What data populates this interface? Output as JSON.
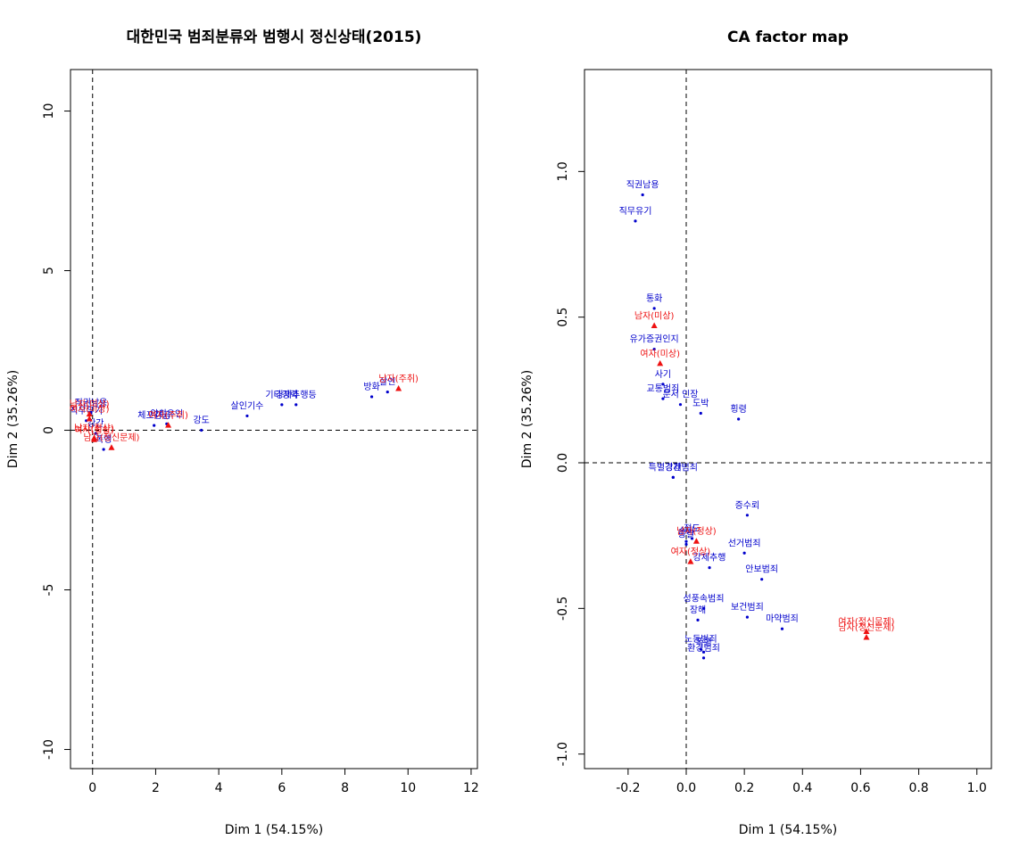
{
  "chart_data": [
    {
      "type": "scatter",
      "title": "대한민국 범죄분류와 범행시 정신상태(2015)",
      "xlabel": "Dim 1 (54.15%)",
      "ylabel": "Dim 2 (35.26%)",
      "xlim": [
        -0.7,
        12.2
      ],
      "ylim": [
        -10.6,
        11.3
      ],
      "xticks": [
        "0",
        "2",
        "4",
        "6",
        "8",
        "10",
        "12"
      ],
      "yticks": [
        "-10",
        "-5",
        "0",
        "5",
        "10"
      ],
      "reference_lines": {
        "x": 0,
        "y": 0
      },
      "row_points": [
        {
          "label": "방화",
          "x": 8.85,
          "y": 1.05
        },
        {
          "label": "살인",
          "x": 9.35,
          "y": 1.2
        },
        {
          "label": "기타강력",
          "x": 6.0,
          "y": 0.8
        },
        {
          "label": "강제추행등",
          "x": 6.45,
          "y": 0.8
        },
        {
          "label": "살인기수",
          "x": 4.9,
          "y": 0.45
        },
        {
          "label": "강도",
          "x": 3.45,
          "y": 0.0
        },
        {
          "label": "체포감금",
          "x": 1.95,
          "y": 0.15
        },
        {
          "label": "약취유인",
          "x": 2.35,
          "y": 0.2
        },
        {
          "label": "직권남용",
          "x": -0.05,
          "y": 0.55
        },
        {
          "label": "직무유기",
          "x": -0.2,
          "y": 0.3
        },
        {
          "label": "강간",
          "x": 0.1,
          "y": -0.1
        },
        {
          "label": "폭행",
          "x": 0.35,
          "y": -0.6
        }
      ],
      "column_points": [
        {
          "label": "남자(주취)",
          "x": 9.7,
          "y": 1.3
        },
        {
          "label": "여자(주취)",
          "x": 2.4,
          "y": 0.15
        },
        {
          "label": "남자(정신문제)",
          "x": 0.6,
          "y": -0.55
        },
        {
          "label": "남자(미상)",
          "x": -0.1,
          "y": 0.5
        },
        {
          "label": "여자(미상)",
          "x": -0.1,
          "y": 0.35
        },
        {
          "label": "남자(정상)",
          "x": 0.05,
          "y": -0.25
        },
        {
          "label": "여자(정상)",
          "x": 0.05,
          "y": -0.3
        }
      ]
    },
    {
      "type": "scatter",
      "title": "CA factor map",
      "xlabel": "Dim 1 (54.15%)",
      "ylabel": "Dim 2 (35.26%)",
      "xlim": [
        -0.35,
        1.05
      ],
      "ylim": [
        -1.05,
        1.35
      ],
      "xticks": [
        "-0.2",
        "0.0",
        "0.2",
        "0.4",
        "0.6",
        "0.8",
        "1.0"
      ],
      "yticks": [
        "-1.0",
        "-0.5",
        "0.0",
        "0.5",
        "1.0"
      ],
      "reference_lines": {
        "x": 0,
        "y": 0
      },
      "row_points": [
        {
          "label": "직권남용",
          "x": -0.15,
          "y": 0.92
        },
        {
          "label": "직무유기",
          "x": -0.175,
          "y": 0.83
        },
        {
          "label": "통화",
          "x": -0.11,
          "y": 0.53
        },
        {
          "label": "유가증권인지",
          "x": -0.11,
          "y": 0.39
        },
        {
          "label": "사기",
          "x": -0.08,
          "y": 0.27
        },
        {
          "label": "교통범죄",
          "x": -0.08,
          "y": 0.22
        },
        {
          "label": "문서 인장",
          "x": -0.02,
          "y": 0.2
        },
        {
          "label": "도박",
          "x": 0.05,
          "y": 0.17
        },
        {
          "label": "횡령",
          "x": 0.18,
          "y": 0.15
        },
        {
          "label": "강간",
          "x": -0.045,
          "y": -0.05
        },
        {
          "label": "특별경제범죄",
          "x": -0.045,
          "y": -0.05
        },
        {
          "label": "증수뢰",
          "x": 0.21,
          "y": -0.18
        },
        {
          "label": "손괴",
          "x": 0.0,
          "y": -0.27
        },
        {
          "label": "절도",
          "x": 0.02,
          "y": -0.26
        },
        {
          "label": "공갈",
          "x": 0.0,
          "y": -0.28
        },
        {
          "label": "강제추행",
          "x": 0.08,
          "y": -0.36
        },
        {
          "label": "선거범죄",
          "x": 0.2,
          "y": -0.31
        },
        {
          "label": "안보범죄",
          "x": 0.26,
          "y": -0.4
        },
        {
          "label": "성풍속범죄",
          "x": 0.06,
          "y": -0.5
        },
        {
          "label": "장해",
          "x": 0.04,
          "y": -0.54
        },
        {
          "label": "보건범죄",
          "x": 0.21,
          "y": -0.53
        },
        {
          "label": "마약범죄",
          "x": 0.33,
          "y": -0.57
        },
        {
          "label": "노동범죄",
          "x": 0.05,
          "y": -0.64
        },
        {
          "label": "폭행",
          "x": 0.06,
          "y": -0.65
        },
        {
          "label": "환경범죄",
          "x": 0.06,
          "y": -0.67
        }
      ],
      "column_points": [
        {
          "label": "남자(미상)",
          "x": -0.11,
          "y": 0.47
        },
        {
          "label": "여자(미상)",
          "x": -0.09,
          "y": 0.34
        },
        {
          "label": "남자(정상)",
          "x": 0.035,
          "y": -0.27
        },
        {
          "label": "여자(정상)",
          "x": 0.015,
          "y": -0.34
        },
        {
          "label": "여자(정신문제)",
          "x": 0.62,
          "y": -0.58
        },
        {
          "label": "남자(정신문제)",
          "x": 0.62,
          "y": -0.6
        }
      ]
    }
  ]
}
